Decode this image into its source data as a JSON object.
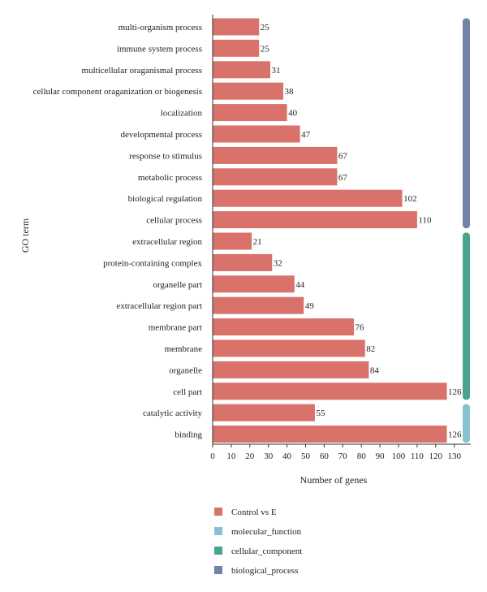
{
  "chart_data": {
    "type": "bar",
    "orientation": "horizontal",
    "xlabel": "Number of genes",
    "ylabel": "GO term",
    "xlim": [
      0,
      135
    ],
    "xticks": [
      0,
      10,
      20,
      30,
      40,
      50,
      60,
      70,
      80,
      90,
      100,
      110,
      120,
      130
    ],
    "categories": [
      "multi-organism process",
      "immune system process",
      "multicellular oraganismal process",
      "cellular component oraganization or biogenesis",
      "localization",
      "developmental process",
      "response to stimulus",
      "metabolic process",
      "biological regulation",
      "cellular process",
      "extracellular region",
      "protein-containing complex",
      "organelle part",
      "extracellular region part",
      "membrane part",
      "membrane",
      "organelle",
      "cell part",
      "catalytic activity",
      "binding"
    ],
    "series": [
      {
        "name": "Control vs E",
        "color": "#d9726a",
        "values": [
          25,
          25,
          31,
          38,
          40,
          47,
          67,
          67,
          102,
          110,
          21,
          32,
          44,
          49,
          76,
          82,
          84,
          126,
          55,
          126
        ]
      }
    ],
    "groups": [
      {
        "name": "biological_process",
        "color": "#7283a8",
        "from": 0,
        "to": 9
      },
      {
        "name": "cellular_component",
        "color": "#4aa38f",
        "from": 10,
        "to": 17
      },
      {
        "name": "molecular_function",
        "color": "#86c3cf",
        "from": 18,
        "to": 19
      }
    ],
    "legend": {
      "placement": "bottom",
      "items": [
        {
          "label": "Control vs E",
          "color": "#d9726a"
        },
        {
          "label": "molecular_function",
          "color": "#86c3cf"
        },
        {
          "label": "cellular_component",
          "color": "#4aa38f"
        },
        {
          "label": "biological_process",
          "color": "#7283a8"
        }
      ]
    },
    "grid": false
  }
}
